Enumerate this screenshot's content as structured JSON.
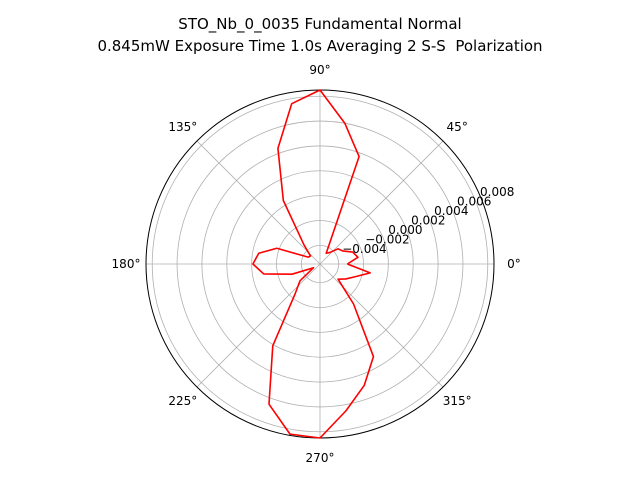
{
  "figure": {
    "title_line1": "STO_Nb_0_0035 Fundamental Normal",
    "title_line2": "0.845mW Exposure Time 1.0s Averaging 2 S-S  Polarization"
  },
  "chart_data": {
    "type": "polar-line",
    "title": "STO_Nb_0_0035 Fundamental Normal\n0.845mW Exposure Time 1.0s Averaging 2 S-S  Polarization",
    "theta_unit": "degrees",
    "theta_tick_labels": [
      "0°",
      "45°",
      "90°",
      "135°",
      "180°",
      "225°",
      "270°",
      "315°"
    ],
    "theta_ticks_deg": [
      0,
      45,
      90,
      135,
      180,
      225,
      270,
      315
    ],
    "r_ticks": [
      -0.004,
      -0.002,
      0.0,
      0.002,
      0.004,
      0.006,
      0.008
    ],
    "r_tick_labels": [
      "−0.004",
      "−0.002",
      "0.000",
      "0.002",
      "0.004",
      "0.006",
      "0.008"
    ],
    "r_lim": [
      -0.0055,
      0.0085
    ],
    "r_label_angle_deg": 22.5,
    "grid": true,
    "series": [
      {
        "color": "#ff0000",
        "theta_deg": [
          0,
          10,
          20,
          30,
          40,
          50,
          60,
          70,
          80,
          90,
          100,
          110,
          120,
          130,
          140,
          150,
          160,
          170,
          180,
          190,
          200,
          210,
          220,
          230,
          240,
          250,
          260,
          270,
          280,
          290,
          300,
          310,
          320,
          330,
          340,
          350,
          360
        ],
        "r": [
          -0.0033,
          -0.0024,
          -0.0027,
          -0.0034,
          -0.0036,
          -0.0043,
          -0.0045,
          0.0037,
          0.006,
          0.0085,
          0.0076,
          0.0044,
          0.0004,
          -0.0035,
          -0.0045,
          -0.0044,
          -0.0018,
          -0.0005,
          -0.0001,
          -0.0009,
          -0.0031,
          -0.0049,
          -0.0034,
          -0.0024,
          0.0021,
          0.0065,
          0.0084,
          0.0085,
          0.0065,
          0.0049,
          0.0031,
          -0.0013,
          -0.0036,
          -0.0031,
          -0.0025,
          -0.0014,
          -0.0033
        ]
      }
    ]
  }
}
